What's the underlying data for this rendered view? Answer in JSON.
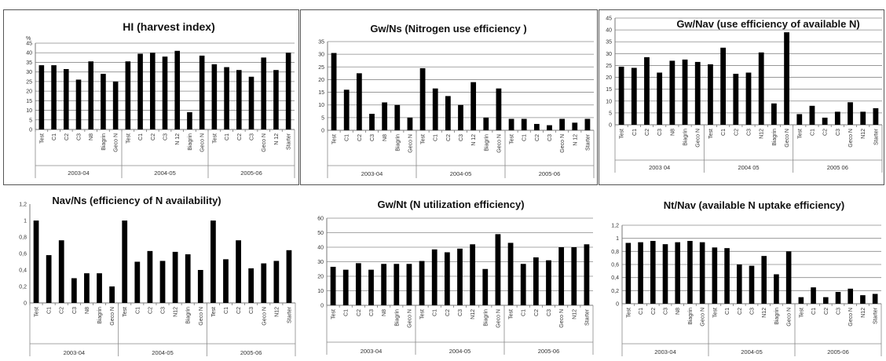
{
  "chart_data": [
    {
      "type": "bar",
      "title": "HI (harvest index)",
      "ylabel": "%",
      "ylim": [
        0,
        45
      ],
      "yticks": [
        "0",
        "5",
        "10",
        "15",
        "20",
        "25",
        "30",
        "35",
        "40",
        "45"
      ],
      "grid": true,
      "categories": [
        "Test",
        "C1",
        "C2",
        "C3",
        "N8",
        "Biagrin",
        "Geco N",
        "Test",
        "C1",
        "C2",
        "C3",
        "N 12",
        "Biagrin",
        "Geco N",
        "Test",
        "C1",
        "C2",
        "C3",
        "Geco N",
        "N 12",
        "Starter"
      ],
      "values": [
        33.5,
        33.5,
        31.5,
        26,
        35.5,
        29,
        25,
        35.5,
        39.5,
        40,
        38,
        41,
        9,
        38.5,
        34,
        32.5,
        31,
        27.5,
        37.5,
        31,
        40
      ],
      "groups": [
        {
          "label": "2003-04",
          "count": 7
        },
        {
          "label": "2004-05",
          "count": 7
        },
        {
          "label": "2005-06",
          "count": 7
        }
      ]
    },
    {
      "type": "bar",
      "title": "Gw/Ns (Nitrogen use efficiency )",
      "ylim": [
        0,
        35
      ],
      "yticks": [
        "0",
        "5",
        "10",
        "15",
        "20",
        "25",
        "30",
        "35"
      ],
      "grid": true,
      "categories": [
        "Test",
        "C1",
        "C2",
        "C3",
        "N8",
        "Biagrin",
        "Geco N",
        "Test",
        "C1",
        "C2",
        "C3",
        "N 12",
        "Biagrin",
        "Geco N",
        "Test",
        "C1",
        "C2",
        "C3",
        "Geco N",
        "N 12",
        "Starter"
      ],
      "values": [
        30.5,
        16,
        22.5,
        6.5,
        11,
        10,
        5,
        24.5,
        16.5,
        13.5,
        10,
        19,
        5,
        16.5,
        4.5,
        4.5,
        2.5,
        2,
        4.5,
        3,
        4.5
      ],
      "groups": [
        {
          "label": "2003-04",
          "count": 7
        },
        {
          "label": "2004-05",
          "count": 7
        },
        {
          "label": "2005-06",
          "count": 7
        }
      ]
    },
    {
      "type": "bar",
      "title": "Gw/Nav (use efficiency of available N)",
      "ylim": [
        0,
        45
      ],
      "yticks": [
        "0",
        "5",
        "10",
        "15",
        "20",
        "25",
        "30",
        "35",
        "40",
        "45"
      ],
      "grid": true,
      "categories": [
        "Test",
        "C1",
        "C2",
        "C3",
        "N8",
        "Biagrin",
        "Geco N",
        "Test",
        "C1",
        "C2",
        "C3",
        "N12",
        "Biagrin",
        "Geco N",
        "Test",
        "C1",
        "C2",
        "C3",
        "Geco N",
        "N12",
        "Starter"
      ],
      "values": [
        24.5,
        24,
        28.5,
        22,
        27,
        27.5,
        26.5,
        25.5,
        32.5,
        21.5,
        22,
        30.5,
        9,
        39,
        4.5,
        8,
        3,
        5.5,
        9.5,
        5.5,
        7
      ],
      "groups": [
        {
          "label": "2003 04",
          "count": 7
        },
        {
          "label": "2004 05",
          "count": 7
        },
        {
          "label": "2005 06",
          "count": 7
        }
      ]
    },
    {
      "type": "bar",
      "title": "Nav/Ns (efficiency of N availability)",
      "ylim": [
        0,
        1.2
      ],
      "yticks": [
        "0",
        "0,2",
        "0,4",
        "0,6",
        "0,8",
        "1",
        "1,2"
      ],
      "grid": false,
      "categories": [
        "Test",
        "C1",
        "C2",
        "C3",
        "N8",
        "Biagrin",
        "Geco N",
        "Test",
        "C1",
        "C2",
        "C3",
        "N12",
        "Biagrin",
        "Geco N",
        "Test",
        "C1",
        "C2",
        "C3",
        "Geco N",
        "N12",
        "Starter"
      ],
      "values": [
        1,
        0.58,
        0.76,
        0.3,
        0.36,
        0.36,
        0.2,
        1,
        0.5,
        0.63,
        0.51,
        0.62,
        0.59,
        0.4,
        1,
        0.53,
        0.76,
        0.42,
        0.48,
        0.51,
        0.64
      ],
      "groups": [
        {
          "label": "2003-04",
          "count": 7
        },
        {
          "label": "2004-05",
          "count": 7
        },
        {
          "label": "2005-06",
          "count": 7
        }
      ]
    },
    {
      "type": "bar",
      "title": "Gw/Nt (N utilization efficiency)",
      "ylim": [
        0,
        60
      ],
      "yticks": [
        "0",
        "10",
        "20",
        "30",
        "40",
        "50",
        "60"
      ],
      "grid": true,
      "categories": [
        "Test",
        "C1",
        "C2",
        "C3",
        "N8",
        "Biagrin",
        "Geco N",
        "Test",
        "C1",
        "C2",
        "C3",
        "N12",
        "Biagrin",
        "Geco N",
        "Test",
        "C1",
        "C2",
        "C3",
        "Geco N",
        "N12",
        "Starter"
      ],
      "values": [
        26.5,
        24.5,
        29,
        24.5,
        28.5,
        28.5,
        28.5,
        30.5,
        38.5,
        36.5,
        39,
        42,
        25,
        49,
        43,
        28.5,
        33,
        31,
        40,
        40,
        42
      ],
      "groups": [
        {
          "label": "2003-04",
          "count": 7
        },
        {
          "label": "2004-05",
          "count": 7
        },
        {
          "label": "2005-06",
          "count": 7
        }
      ]
    },
    {
      "type": "bar",
      "title": "Nt/Nav (available N uptake efficiency)",
      "ylim": [
        0,
        1.2
      ],
      "yticks": [
        "0",
        "0,2",
        "0,4",
        "0,6",
        "0,8",
        "1",
        "1,2"
      ],
      "grid": true,
      "categories": [
        "Test",
        "C1",
        "C2",
        "C3",
        "N8",
        "Biagrin",
        "Geco N",
        "Test",
        "C1",
        "C2",
        "C3",
        "N12",
        "Biagrin",
        "Geco N",
        "Test",
        "C1",
        "C2",
        "C3",
        "Geco N",
        "N12",
        "Starter"
      ],
      "values": [
        0.93,
        0.94,
        0.96,
        0.91,
        0.94,
        0.96,
        0.94,
        0.86,
        0.85,
        0.6,
        0.58,
        0.73,
        0.45,
        0.8,
        0.1,
        0.25,
        0.1,
        0.18,
        0.23,
        0.13,
        0.15
      ],
      "groups": [
        {
          "label": "2003-04",
          "count": 7
        },
        {
          "label": "2004-05",
          "count": 7
        },
        {
          "label": "2005-06",
          "count": 7
        }
      ]
    }
  ]
}
